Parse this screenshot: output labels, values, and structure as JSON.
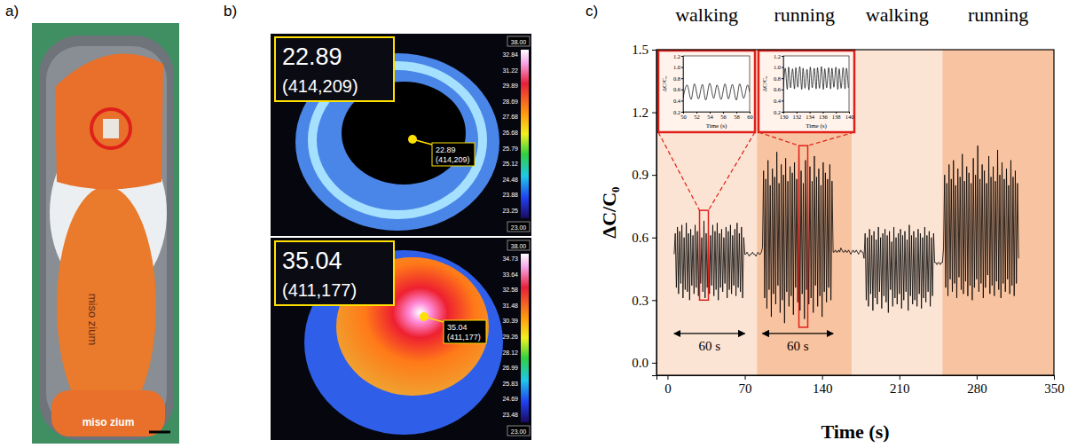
{
  "panel_labels": [
    "a)",
    "b)",
    "c)"
  ],
  "photo": {
    "brand": "miso zium"
  },
  "thermal": [
    {
      "readout": "22.89",
      "coords": "(414,209)",
      "colorbar_max": "38.00",
      "colorbar_min": "23.00",
      "colorbar_ticks": [
        "32.84",
        "31.22",
        "29.89",
        "28.69",
        "27.68",
        "26.68",
        "25.79",
        "25.12",
        "24.48",
        "23.88",
        "23.25"
      ]
    },
    {
      "readout": "35.04",
      "coords": "(411,177)",
      "colorbar_max": "38.00",
      "colorbar_min": "23.00",
      "colorbar_ticks": [
        "34.73",
        "33.64",
        "32.58",
        "31.48",
        "30.39",
        "29.26",
        "28.12",
        "26.99",
        "25.83",
        "24.69",
        "23.48"
      ]
    }
  ],
  "chart_data": {
    "type": "line",
    "x_label": "Time (s)",
    "y_label": "ΔC/C₀",
    "xlim": [
      -10,
      350
    ],
    "xticks": [
      0,
      70,
      140,
      210,
      280,
      350
    ],
    "ylim": [
      -0.06,
      1.5
    ],
    "yticks": [
      {
        "value": 0,
        "label": "0.0"
      },
      0.3,
      0.6,
      0.9,
      1.2,
      1.5
    ],
    "grid": false,
    "color": "#000000",
    "phases": [
      {
        "label": "walking",
        "start": -10,
        "end": 81,
        "color": "#fce4d4"
      },
      {
        "label": "running",
        "start": 81,
        "end": 167,
        "color": "#f8c3a0"
      },
      {
        "label": "walking",
        "start": 167,
        "end": 249,
        "color": "#fce4d4"
      },
      {
        "label": "running",
        "start": 249,
        "end": 350,
        "color": "#f8c3a0"
      }
    ],
    "annotations": [
      {
        "text": "60 s",
        "x": [
          6,
          70
        ],
        "y": 0.14
      },
      {
        "text": "60 s",
        "x": [
          86,
          150
        ],
        "y": 0.14
      }
    ],
    "x": [
      6,
      7,
      8,
      9,
      10,
      11,
      12,
      13,
      14,
      15,
      16,
      17,
      18,
      19,
      20,
      21,
      22,
      23,
      24,
      25,
      26,
      27,
      28,
      29,
      30,
      31,
      32,
      33,
      34,
      35,
      36,
      37,
      38,
      39,
      40,
      41,
      42,
      43,
      44,
      45,
      46,
      47,
      48,
      49,
      50,
      51,
      52,
      53,
      54,
      55,
      56,
      57,
      58,
      59,
      60,
      61,
      62,
      63,
      64,
      65,
      66,
      67,
      68,
      69,
      70,
      71,
      72,
      73,
      74,
      75,
      76,
      77,
      78,
      79,
      80,
      81,
      82,
      83,
      84,
      85,
      86,
      87,
      88,
      89,
      90,
      91,
      92,
      93,
      94,
      95,
      96,
      97,
      98,
      99,
      100,
      101,
      102,
      103,
      104,
      105,
      106,
      107,
      108,
      109,
      110,
      111,
      112,
      113,
      114,
      115,
      116,
      117,
      118,
      119,
      120,
      121,
      122,
      123,
      124,
      125,
      126,
      127,
      128,
      129,
      130,
      131,
      132,
      133,
      134,
      135,
      136,
      137,
      138,
      139,
      140,
      141,
      142,
      143,
      144,
      145,
      146,
      147,
      148,
      149,
      150,
      151,
      152,
      153,
      154,
      155,
      156,
      157,
      158,
      159,
      160,
      161,
      162,
      163,
      164,
      165,
      166,
      167,
      168,
      169,
      170,
      171,
      172,
      173,
      174,
      175,
      176,
      177,
      178,
      179,
      180,
      181,
      182,
      183,
      184,
      185,
      186,
      187,
      188,
      189,
      190,
      191,
      192,
      193,
      194,
      195,
      196,
      197,
      198,
      199,
      200,
      201,
      202,
      203,
      204,
      205,
      206,
      207,
      208,
      209,
      210,
      211,
      212,
      213,
      214,
      215,
      216,
      217,
      218,
      219,
      220,
      221,
      222,
      223,
      224,
      225,
      226,
      227,
      228,
      229,
      230,
      231,
      232,
      233,
      234,
      235,
      236,
      237,
      238,
      239,
      240,
      241,
      242,
      243,
      244,
      245,
      246,
      247,
      248,
      249,
      250,
      251,
      252,
      253,
      254,
      255,
      256,
      257,
      258,
      259,
      260,
      261,
      262,
      263,
      264,
      265,
      266,
      267,
      268,
      269,
      270,
      271,
      272,
      273,
      274,
      275,
      276,
      277,
      278,
      279,
      280,
      281,
      282,
      283,
      284,
      285,
      286,
      287,
      288,
      289,
      290,
      291,
      292,
      293,
      294,
      295,
      296,
      297,
      298,
      299,
      300,
      301,
      302,
      303,
      304,
      305,
      306,
      307,
      308,
      309,
      310,
      311,
      312,
      313,
      314,
      315,
      316,
      317,
      318
    ],
    "values": [
      0.52,
      0.62,
      0.36,
      0.65,
      0.33,
      0.63,
      0.38,
      0.66,
      0.31,
      0.6,
      0.35,
      0.67,
      0.34,
      0.62,
      0.3,
      0.64,
      0.37,
      0.61,
      0.33,
      0.66,
      0.36,
      0.63,
      0.32,
      0.65,
      0.38,
      0.6,
      0.34,
      0.68,
      0.31,
      0.62,
      0.36,
      0.64,
      0.33,
      0.61,
      0.37,
      0.66,
      0.32,
      0.63,
      0.35,
      0.67,
      0.3,
      0.62,
      0.36,
      0.64,
      0.34,
      0.6,
      0.38,
      0.65,
      0.31,
      0.63,
      0.35,
      0.66,
      0.33,
      0.61,
      0.37,
      0.64,
      0.32,
      0.67,
      0.36,
      0.62,
      0.34,
      0.65,
      0.31,
      0.6,
      0.52,
      0.52,
      0.53,
      0.52,
      0.51,
      0.52,
      0.52,
      0.53,
      0.52,
      0.52,
      0.51,
      0.52,
      0.53,
      0.52,
      0.52,
      0.53,
      0.55,
      0.92,
      0.31,
      0.88,
      0.26,
      0.97,
      0.35,
      0.85,
      0.22,
      0.93,
      0.33,
      0.89,
      0.28,
      1.01,
      0.37,
      0.86,
      0.24,
      0.95,
      0.3,
      0.9,
      0.19,
      0.98,
      0.34,
      0.87,
      0.27,
      0.94,
      0.32,
      0.91,
      0.23,
      0.96,
      0.36,
      0.88,
      0.29,
      1.02,
      0.25,
      0.92,
      0.33,
      0.86,
      0.21,
      0.97,
      0.35,
      0.9,
      0.28,
      0.94,
      0.31,
      0.87,
      0.24,
      0.99,
      0.37,
      0.89,
      0.27,
      0.93,
      0.32,
      0.85,
      0.22,
      0.96,
      0.34,
      0.91,
      0.29,
      0.88,
      0.36,
      0.95,
      0.3,
      0.87,
      0.53,
      0.53,
      0.54,
      0.53,
      0.53,
      0.54,
      0.53,
      0.55,
      0.54,
      0.53,
      0.53,
      0.54,
      0.53,
      0.53,
      0.54,
      0.53,
      0.52,
      0.53,
      0.54,
      0.53,
      0.53,
      0.54,
      0.53,
      0.52,
      0.53,
      0.54,
      0.53,
      0.53,
      0.5,
      0.62,
      0.3,
      0.6,
      0.27,
      0.64,
      0.33,
      0.61,
      0.25,
      0.63,
      0.31,
      0.59,
      0.28,
      0.65,
      0.34,
      0.6,
      0.26,
      0.62,
      0.32,
      0.64,
      0.29,
      0.61,
      0.24,
      0.63,
      0.35,
      0.58,
      0.27,
      0.65,
      0.31,
      0.6,
      0.28,
      0.62,
      0.33,
      0.64,
      0.26,
      0.61,
      0.3,
      0.63,
      0.34,
      0.59,
      0.25,
      0.66,
      0.32,
      0.61,
      0.28,
      0.63,
      0.3,
      0.6,
      0.27,
      0.64,
      0.33,
      0.62,
      0.26,
      0.6,
      0.31,
      0.65,
      0.29,
      0.61,
      0.34,
      0.63,
      0.27,
      0.6,
      0.32,
      0.62,
      0.48,
      0.48,
      0.47,
      0.48,
      0.48,
      0.47,
      0.48,
      0.48,
      0.55,
      0.9,
      0.36,
      0.86,
      0.32,
      0.95,
      0.4,
      0.88,
      0.34,
      0.97,
      0.38,
      0.85,
      0.31,
      0.93,
      0.41,
      0.89,
      0.35,
      1.0,
      0.33,
      0.87,
      0.39,
      0.94,
      0.32,
      0.91,
      0.37,
      0.86,
      0.3,
      0.98,
      0.36,
      0.9,
      0.4,
      1.04,
      0.34,
      0.88,
      0.38,
      0.95,
      0.31,
      0.92,
      0.36,
      0.86,
      0.42,
      0.99,
      0.33,
      0.89,
      0.37,
      0.94,
      0.32,
      0.87,
      0.39,
      1.02,
      0.35,
      0.9,
      0.31,
      0.96,
      0.38,
      0.88,
      0.34,
      0.93,
      0.4,
      0.85,
      0.33,
      0.97,
      0.37,
      0.89,
      0.32,
      0.92,
      0.38,
      0.86,
      0.5
    ],
    "insets": [
      {
        "type": "line",
        "x_label": "Time (s)",
        "y_label": "ΔC/C₀",
        "xlim": [
          50,
          60
        ],
        "xticks": [
          50,
          52,
          54,
          56,
          58,
          60
        ],
        "ylim": [
          0.2,
          1.2
        ],
        "yticks": [
          0.2,
          0.4,
          0.6,
          0.8,
          {
            "value": 1,
            "label": "1.0"
          },
          1.2
        ],
        "x": [
          50.0,
          50.6,
          51.2,
          51.7,
          52.3,
          52.9,
          53.4,
          54.0,
          54.6,
          55.1,
          55.7,
          56.3,
          56.8,
          57.4,
          58.0,
          58.5,
          59.1,
          59.7,
          60.0
        ],
        "values": [
          0.45,
          0.68,
          0.42,
          0.7,
          0.43,
          0.69,
          0.41,
          0.71,
          0.44,
          0.68,
          0.42,
          0.7,
          0.43,
          0.69,
          0.41,
          0.7,
          0.44,
          0.68,
          0.55
        ],
        "zoom_x": [
          29,
          37
        ],
        "zoom_y": [
          0.3,
          0.73
        ]
      },
      {
        "type": "line",
        "x_label": "Time (s)",
        "y_label": "ΔC/C₀",
        "xlim": [
          130,
          140
        ],
        "xticks": [
          130,
          132,
          134,
          136,
          138,
          140
        ],
        "ylim": [
          0.2,
          1.2
        ],
        "yticks": [
          0.2,
          0.4,
          0.6,
          0.8,
          {
            "value": 1,
            "label": "1.0"
          },
          1.2
        ],
        "x": [
          130.0,
          130.3,
          130.6,
          130.8,
          131.1,
          131.4,
          131.7,
          131.9,
          132.2,
          132.5,
          132.8,
          133.0,
          133.3,
          133.6,
          133.9,
          134.1,
          134.4,
          134.7,
          135.0,
          135.2,
          135.5,
          135.8,
          136.1,
          136.3,
          136.6,
          136.9,
          137.2,
          137.4,
          137.7,
          138.0,
          138.3,
          138.5,
          138.8,
          139.1,
          139.4,
          139.6,
          139.9
        ],
        "values": [
          0.62,
          0.98,
          0.6,
          1.0,
          0.63,
          0.97,
          0.61,
          0.99,
          0.64,
          1.01,
          0.6,
          0.98,
          0.62,
          0.96,
          0.59,
          1.0,
          0.63,
          0.98,
          0.61,
          0.99,
          0.62,
          1.01,
          0.6,
          0.97,
          0.63,
          0.99,
          0.61,
          0.98,
          0.64,
          1.0,
          0.6,
          0.97,
          0.62,
          0.99,
          0.61,
          0.98,
          0.63
        ],
        "zoom_x": [
          119,
          127
        ],
        "zoom_y": [
          0.17,
          1.04
        ]
      }
    ]
  }
}
